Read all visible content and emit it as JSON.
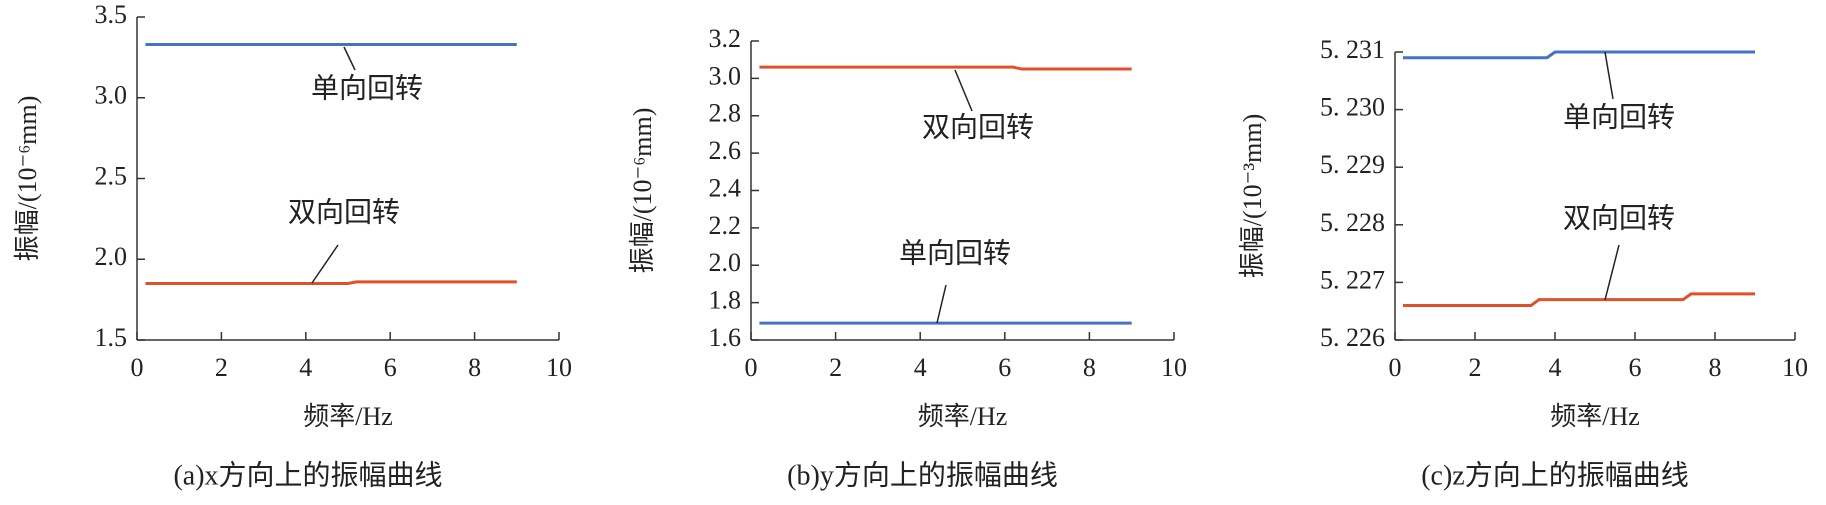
{
  "chart_data": [
    {
      "type": "line",
      "caption": "(a)x方向上的振幅曲线",
      "xlabel": "频率/Hz",
      "ylabel": "振幅/(10⁻⁶mm)",
      "x": [
        0.2,
        5.0,
        5.2,
        9.0
      ],
      "series": [
        {
          "name": "单向回转",
          "color": "#4472c4",
          "values": [
            3.33,
            3.33,
            3.33,
            3.33
          ]
        },
        {
          "name": "双向回转",
          "color": "#e0502a",
          "values": [
            1.85,
            1.85,
            1.86,
            1.86
          ]
        }
      ],
      "xlim": [
        0,
        10
      ],
      "xticks": [
        0,
        2,
        4,
        6,
        8,
        10
      ],
      "ylim": [
        1.5,
        3.5
      ],
      "yticks": [
        1.5,
        {
          "value": 2,
          "label": "2.0"
        },
        2.5,
        {
          "value": 3,
          "label": "3.0"
        },
        3.5
      ]
    },
    {
      "type": "line",
      "caption": "(b)y方向上的振幅曲线",
      "xlabel": "频率/Hz",
      "ylabel": "振幅/(10⁻⁶mm)",
      "x": [
        0.2,
        6.2,
        6.4,
        9.0
      ],
      "series": [
        {
          "name": "单向回转",
          "color": "#4472c4",
          "values": [
            1.69,
            1.69,
            1.69,
            1.69
          ]
        },
        {
          "name": "双向回转",
          "color": "#e0502a",
          "values": [
            3.06,
            3.06,
            3.05,
            3.05
          ]
        }
      ],
      "xlim": [
        0,
        10
      ],
      "xticks": [
        0,
        2,
        4,
        6,
        8,
        10
      ],
      "ylim": [
        1.6,
        3.2
      ],
      "yticks": [
        1.6,
        1.8,
        {
          "value": 2,
          "label": "2.0"
        },
        2.2,
        2.4,
        2.6,
        2.8,
        {
          "value": 3,
          "label": "3.0"
        },
        3.2
      ]
    },
    {
      "type": "line",
      "caption": "(c)z方向上的振幅曲线",
      "xlabel": "频率/Hz",
      "ylabel": "振幅/(10⁻³mm)",
      "x": [
        0.2,
        3.4,
        3.6,
        3.8,
        4.0,
        7.2,
        7.4,
        9.0
      ],
      "series": [
        {
          "name": "单向回转",
          "color": "#4472c4",
          "values": [
            5.2309,
            5.2309,
            5.2309,
            5.2309,
            5.231,
            5.231,
            5.231,
            5.231
          ]
        },
        {
          "name": "双向回转",
          "color": "#e0502a",
          "values": [
            5.2266,
            5.2266,
            5.2267,
            5.2267,
            5.2267,
            5.2267,
            5.2268,
            5.2268
          ]
        }
      ],
      "xlim": [
        0,
        10
      ],
      "xticks": [
        0,
        2,
        4,
        6,
        8,
        10
      ],
      "ylim": [
        5.226,
        5.231
      ],
      "yticks": [
        {
          "value": 5.226,
          "label": "5. 226"
        },
        {
          "value": 5.227,
          "label": "5. 227"
        },
        {
          "value": 5.228,
          "label": "5. 228"
        },
        {
          "value": 5.229,
          "label": "5. 229"
        },
        {
          "value": 5.23,
          "label": "5. 230"
        },
        {
          "value": 5.231,
          "label": "5. 231"
        }
      ]
    }
  ]
}
